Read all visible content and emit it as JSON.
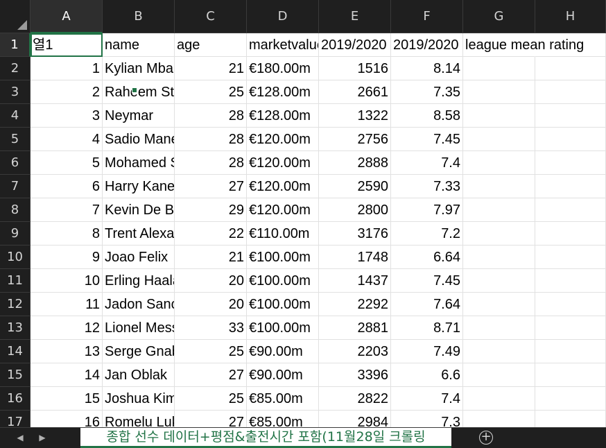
{
  "columns": [
    "A",
    "B",
    "C",
    "D",
    "E",
    "F",
    "G",
    "H"
  ],
  "rows": [
    "1",
    "2",
    "3",
    "4",
    "5",
    "6",
    "7",
    "8",
    "9",
    "10",
    "11",
    "12",
    "13",
    "14",
    "15",
    "16",
    "17"
  ],
  "header_row": [
    "열1",
    "name",
    "age",
    "marketvalue",
    "2019/2020",
    "2019/2020",
    "league mean rating",
    ""
  ],
  "data": [
    [
      "1",
      "Kylian Mbappé",
      "21",
      "€180.00m",
      "1516",
      "8.14"
    ],
    [
      "2",
      "Raheem Sterling",
      "25",
      "€128.00m",
      "2661",
      "7.35"
    ],
    [
      "3",
      "Neymar",
      "28",
      "€128.00m",
      "1322",
      "8.58"
    ],
    [
      "4",
      "Sadio Mané",
      "28",
      "€120.00m",
      "2756",
      "7.45"
    ],
    [
      "5",
      "Mohamed Salah",
      "28",
      "€120.00m",
      "2888",
      "7.4"
    ],
    [
      "6",
      "Harry Kane",
      "27",
      "€120.00m",
      "2590",
      "7.33"
    ],
    [
      "7",
      "Kevin De Bruyne",
      "29",
      "€120.00m",
      "2800",
      "7.97"
    ],
    [
      "8",
      "Trent Alexander-Arnold",
      "22",
      "€110.00m",
      "3176",
      "7.2"
    ],
    [
      "9",
      "Joao Felix",
      "21",
      "€100.00m",
      "1748",
      "6.64"
    ],
    [
      "10",
      "Erling Haaland",
      "20",
      "€100.00m",
      "1437",
      "7.45"
    ],
    [
      "11",
      "Jadon Sancho",
      "20",
      "€100.00m",
      "2292",
      "7.64"
    ],
    [
      "12",
      "Lionel Messi",
      "33",
      "€100.00m",
      "2881",
      "8.71"
    ],
    [
      "13",
      "Serge Gnabry",
      "25",
      "€90.00m",
      "2203",
      "7.49"
    ],
    [
      "14",
      "Jan Oblak",
      "27",
      "€90.00m",
      "3396",
      "6.6"
    ],
    [
      "15",
      "Joshua Kimmich",
      "25",
      "€85.00m",
      "2822",
      "7.4"
    ],
    [
      "16",
      "Romelu Lukaku",
      "27",
      "€85.00m",
      "2984",
      "7.3"
    ]
  ],
  "selected_cell": "A1",
  "sheet_tab": "종합 선수 데이터+평점&출전시간 포함(11월28일 크롤링",
  "nav": {
    "prev": "◀",
    "next": "▶",
    "add": "+"
  },
  "colors": {
    "accent": "#217346",
    "header_bg": "#1f1f1f",
    "grid": "#e1e1e1"
  }
}
